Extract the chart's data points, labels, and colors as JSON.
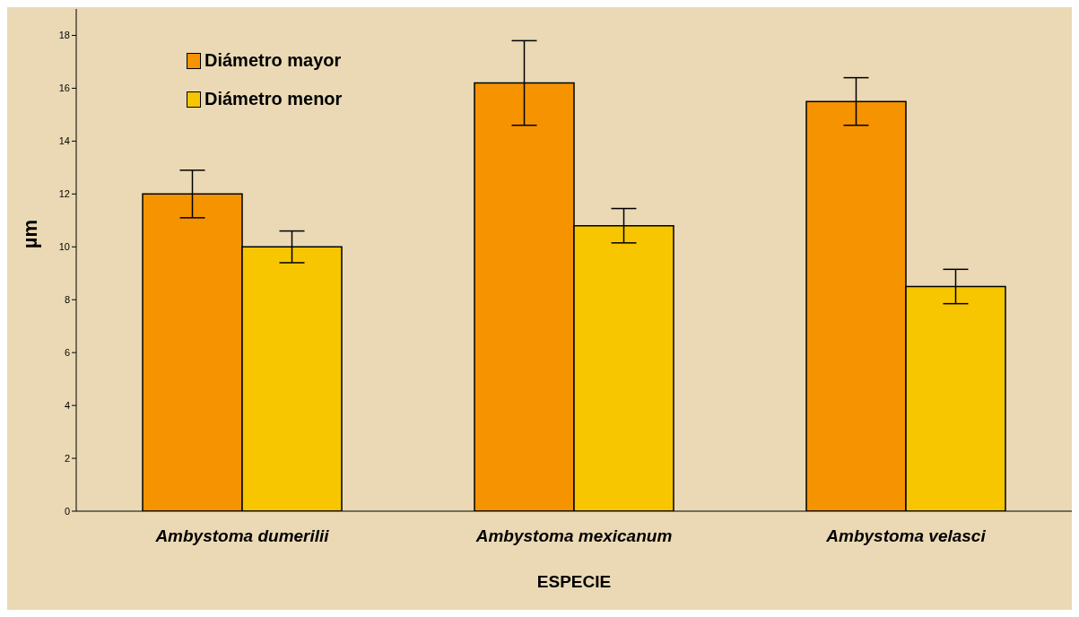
{
  "chart_data": {
    "type": "bar",
    "xlabel": "ESPECIE",
    "ylabel": "µm",
    "categories": [
      "Ambystoma dumerilii",
      "Ambystoma mexicanum",
      "Ambystoma velasci"
    ],
    "series": [
      {
        "name": "Diámetro mayor",
        "color": "#f59300",
        "values": [
          12,
          16.2,
          15.5
        ],
        "errors": [
          0.9,
          1.6,
          0.9
        ]
      },
      {
        "name": "Diámetro menor",
        "color": "#f7c600",
        "values": [
          10,
          10.8,
          8.5
        ],
        "errors": [
          0.6,
          0.65,
          0.65
        ]
      }
    ],
    "ylim": [
      0,
      19
    ],
    "yticks": [
      0,
      2,
      4,
      6,
      8,
      10,
      12,
      14,
      16,
      18
    ],
    "legend": "top left"
  }
}
